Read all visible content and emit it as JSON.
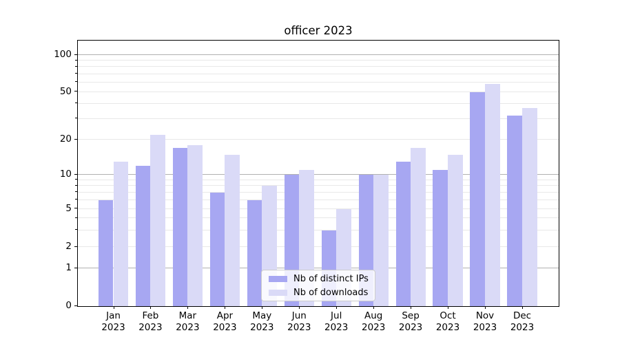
{
  "title": "officer 2023",
  "chart_data": {
    "type": "bar",
    "title": "officer 2023",
    "categories": [
      "Jan 2023",
      "Feb 2023",
      "Mar 2023",
      "Apr 2023",
      "May 2023",
      "Jun 2023",
      "Jul 2023",
      "Aug 2023",
      "Sep 2023",
      "Oct 2023",
      "Nov 2023",
      "Dec 2023"
    ],
    "series": [
      {
        "name": "Nb of distinct IPs",
        "color": "#a7a7f2",
        "values": [
          6,
          12,
          17,
          7,
          6,
          10,
          3,
          10,
          13,
          11,
          50,
          32
        ]
      },
      {
        "name": "Nb of downloads",
        "color": "#dadaf7",
        "values": [
          13,
          22,
          18,
          15,
          8,
          11,
          5,
          10,
          17,
          15,
          58,
          37
        ]
      }
    ],
    "yscale": "log-like (symlog with 0 baseline)",
    "ylim": [
      0,
      130
    ],
    "ytick_labels": [
      0,
      1,
      2,
      5,
      10,
      20,
      50,
      100
    ],
    "major_gridlines": [
      1,
      10,
      100
    ],
    "minor_gridlines": [
      2,
      3,
      4,
      5,
      6,
      7,
      8,
      9,
      20,
      30,
      40,
      50,
      60,
      70,
      80,
      90
    ],
    "grid": true,
    "legend_position": "bottom-center"
  },
  "colors": {
    "bar_dark": "#a7a7f2",
    "bar_light": "#dadaf7",
    "grid_major": "#b0b0b0",
    "grid_minor": "#e8e8e8",
    "spine": "#000000",
    "legend_border": "#cccccc"
  }
}
